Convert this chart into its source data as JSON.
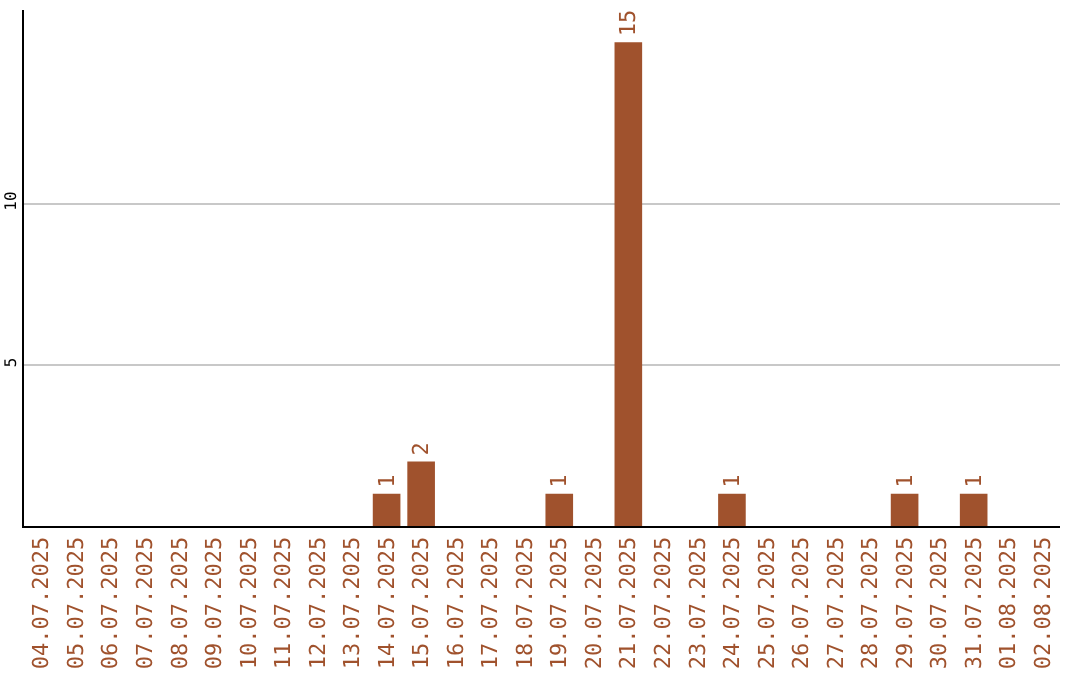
{
  "chart_data": {
    "type": "bar",
    "categories": [
      "04.07.2025",
      "05.07.2025",
      "06.07.2025",
      "07.07.2025",
      "08.07.2025",
      "09.07.2025",
      "10.07.2025",
      "11.07.2025",
      "12.07.2025",
      "13.07.2025",
      "14.07.2025",
      "15.07.2025",
      "16.07.2025",
      "17.07.2025",
      "18.07.2025",
      "19.07.2025",
      "20.07.2025",
      "21.07.2025",
      "22.07.2025",
      "23.07.2025",
      "24.07.2025",
      "25.07.2025",
      "26.07.2025",
      "27.07.2025",
      "28.07.2025",
      "29.07.2025",
      "30.07.2025",
      "31.07.2025",
      "01.08.2025",
      "02.08.2025"
    ],
    "values": [
      0,
      0,
      0,
      0,
      0,
      0,
      0,
      0,
      0,
      0,
      1,
      2,
      0,
      0,
      0,
      1,
      0,
      15,
      0,
      0,
      1,
      0,
      0,
      0,
      0,
      1,
      0,
      1,
      0,
      0
    ],
    "value_labels": [
      null,
      null,
      null,
      null,
      null,
      null,
      null,
      null,
      null,
      null,
      "1",
      "2",
      null,
      null,
      null,
      "1",
      null,
      "15",
      null,
      null,
      "1",
      null,
      null,
      null,
      null,
      "1",
      null,
      "1",
      null,
      null
    ],
    "color": "#a0522d",
    "ylim": [
      0,
      16
    ],
    "yticks": [
      5,
      10
    ],
    "grid": "y"
  }
}
